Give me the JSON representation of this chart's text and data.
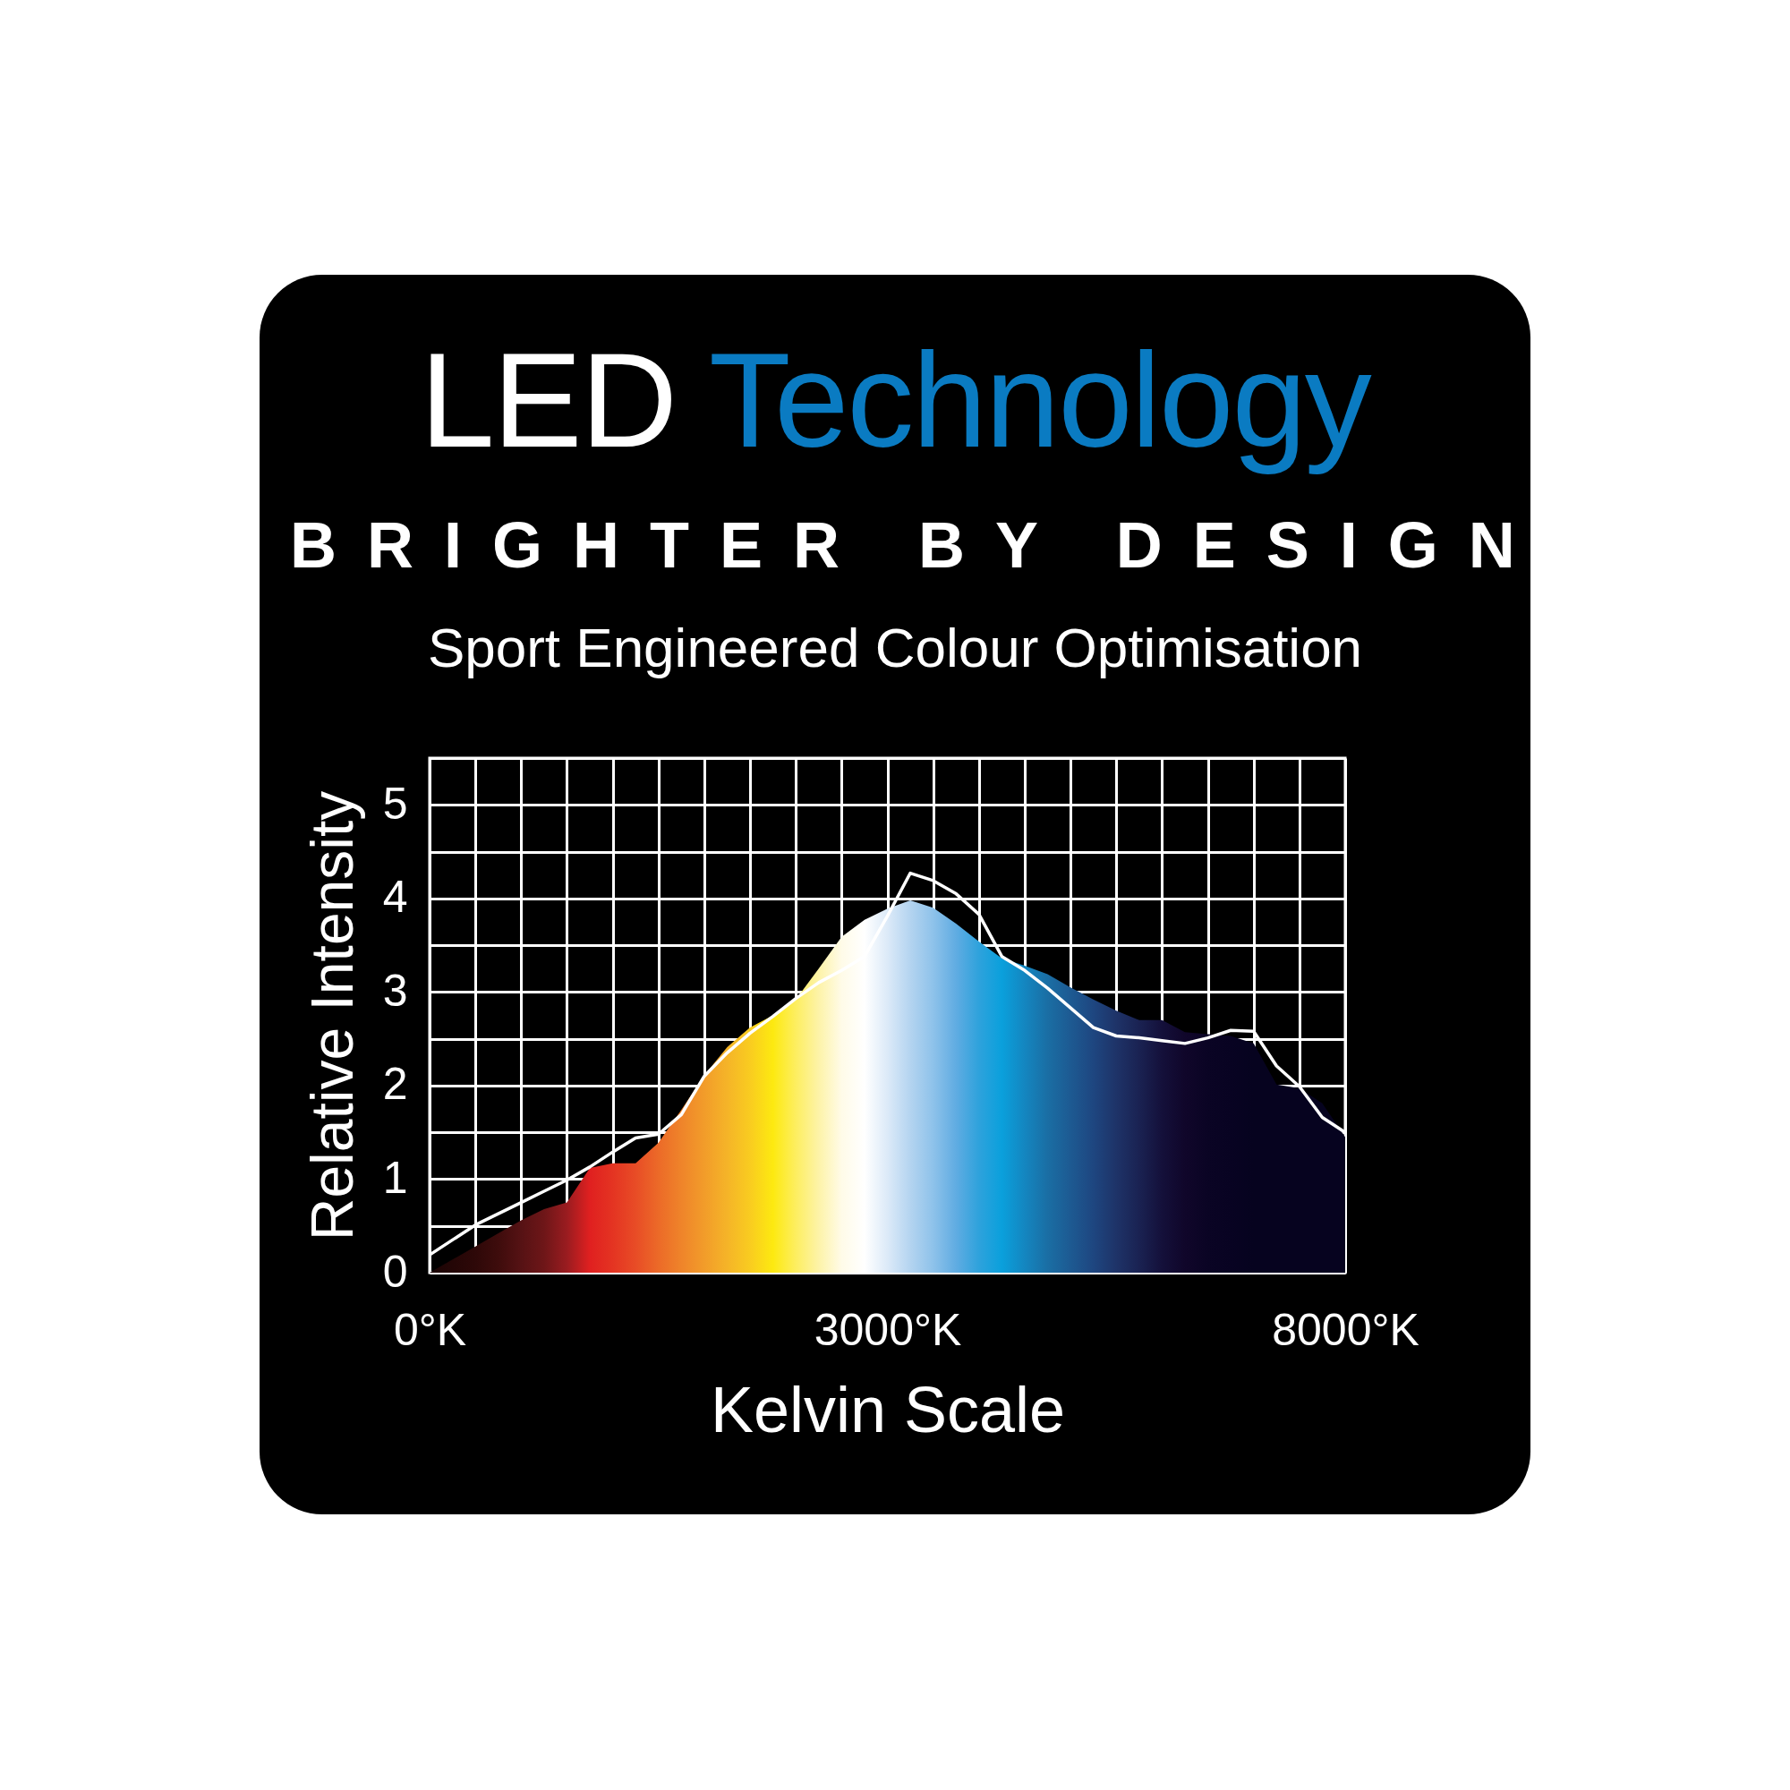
{
  "chart_data": {
    "type": "area",
    "title": "LED Technology",
    "subtitle": "BRIGHTER BY DESIGN",
    "annotations": [
      "Sport Engineered Colour Optimisation"
    ],
    "xlabel": "Kelvin Scale",
    "ylabel": "Relative Intensity",
    "categories": [
      "0°K",
      null,
      null,
      null,
      null,
      null,
      null,
      null,
      null,
      null,
      null,
      null,
      null,
      null,
      null,
      null,
      null,
      null,
      null,
      null,
      "3000°K",
      null,
      null,
      null,
      null,
      null,
      null,
      null,
      null,
      null,
      null,
      null,
      null,
      null,
      null,
      null,
      null,
      null,
      null,
      null,
      "8000°K"
    ],
    "ylim": [
      0,
      5.5
    ],
    "yticks": [
      0,
      {
        "value": 0.5,
        "label": null
      },
      1,
      {
        "value": 1.5,
        "label": null
      },
      2,
      {
        "value": 2.5,
        "label": null
      },
      3,
      {
        "value": 3.5,
        "label": null
      },
      4,
      {
        "value": 4.5,
        "label": null
      },
      5,
      {
        "value": 5.5,
        "label": null
      }
    ],
    "grid": true,
    "series": [
      {
        "values": [
          0,
          0.14,
          0.28,
          0.42,
          0.56,
          0.68,
          0.75,
          1.12,
          1.17,
          1.17,
          1.39,
          1.74,
          2.11,
          2.41,
          2.62,
          2.75,
          2.92,
          3.25,
          3.59,
          3.77,
          3.89,
          3.98,
          3.9,
          3.73,
          3.54,
          3.36,
          3.28,
          3.19,
          3.05,
          2.92,
          2.8,
          2.7,
          2.7,
          2.57,
          2.55,
          2.53,
          2.45,
          2.01,
          1.97,
          1.81,
          1.45
        ],
        "colors": [
          "#1a0404",
          "#240606",
          "#2e0808",
          "#3e0c0c",
          "#561214",
          "#6e1618",
          "#9a1c20",
          "#e02020",
          "#e43422",
          "#e84c26",
          "#ec6a28",
          "#ef842a",
          "#f29c2a",
          "#f5b428",
          "#f9cc20",
          "#fde910",
          "#fdee60",
          "#fdf3a8",
          "#fffbe8",
          "#ffffff",
          "#dceaf8",
          "#b4d4f0",
          "#8ec2ea",
          "#60ace2",
          "#2ea2dc",
          "#0aa0dc",
          "#1486c0",
          "#1a6ea4",
          "#1d5a92",
          "#1e4680",
          "#1e3368",
          "#1a2252",
          "#14103a",
          "#10062a",
          "#0a0424",
          "#080322",
          "#06031f",
          "#06031f",
          "#06031f",
          "#06031f",
          "#06031f"
        ]
      },
      {
        "type": "line",
        "color": "#ffffff",
        "values": [
          0.19,
          0.35,
          0.51,
          0.63,
          0.75,
          0.87,
          0.99,
          1.13,
          1.29,
          1.44,
          1.48,
          1.69,
          2.1,
          2.35,
          2.56,
          2.74,
          2.93,
          3.1,
          3.23,
          3.38,
          3.81,
          4.27,
          4.19,
          4.05,
          3.83,
          3.38,
          3.23,
          3.04,
          2.83,
          2.62,
          2.53,
          2.51,
          2.48,
          2.45,
          2.51,
          2.59,
          2.58,
          2.21,
          1.99,
          1.66,
          1.5
        ]
      }
    ]
  }
}
